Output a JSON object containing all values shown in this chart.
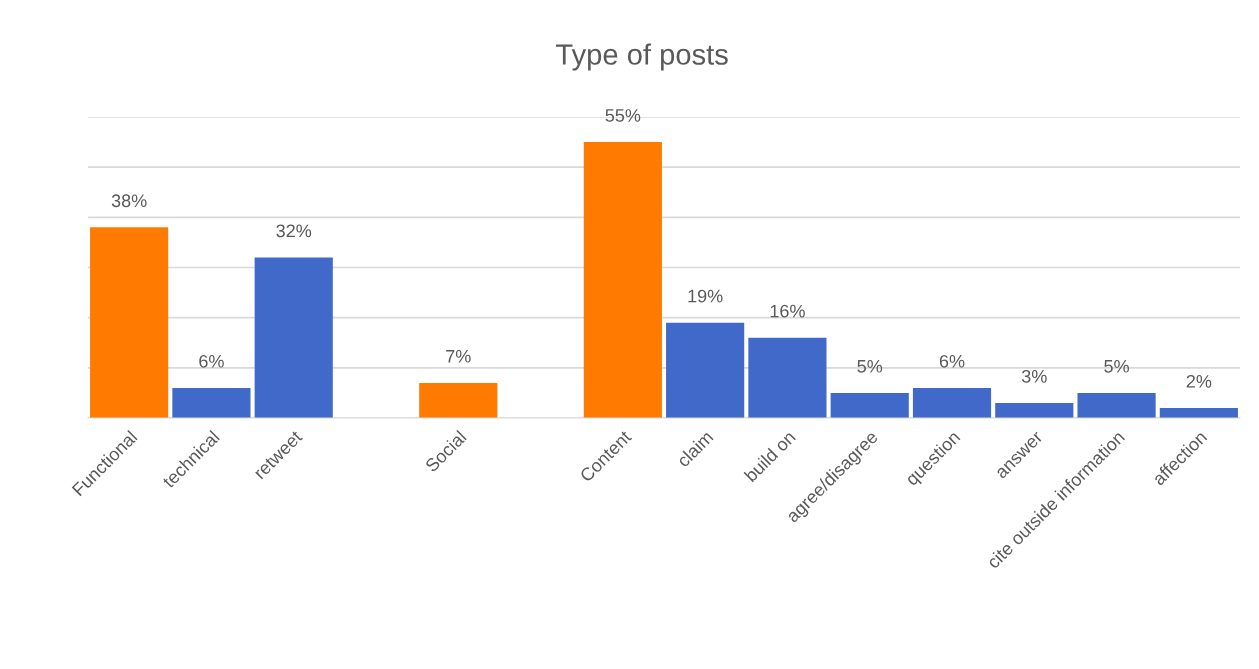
{
  "chart_data": {
    "type": "bar",
    "title": "Type of posts",
    "categories": [
      "Functional",
      "technical",
      "retweet",
      null,
      "Social",
      null,
      "Content",
      "claim",
      "build on",
      "agree/disagree",
      "question",
      "answer",
      "cite outside information",
      "affection"
    ],
    "values": [
      38,
      6,
      32,
      null,
      7,
      null,
      55,
      19,
      16,
      5,
      6,
      3,
      5,
      2
    ],
    "colors": [
      "#ff7a00",
      "#4169c9",
      "#4169c9",
      null,
      "#ff7a00",
      null,
      "#ff7a00",
      "#4169c9",
      "#4169c9",
      "#4169c9",
      "#4169c9",
      "#4169c9",
      "#4169c9",
      "#4169c9"
    ],
    "value_labels": [
      "38%",
      "6%",
      "32%",
      null,
      "7%",
      null,
      "55%",
      "19%",
      "16%",
      "5%",
      "6%",
      "3%",
      "5%",
      "2%"
    ],
    "ylim": [
      0,
      60
    ],
    "yticks": [
      {
        "value": 0,
        "label": null
      },
      {
        "value": 10,
        "label": null
      },
      {
        "value": 20,
        "label": null
      },
      {
        "value": 30,
        "label": null
      },
      {
        "value": 40,
        "label": null
      },
      {
        "value": 50,
        "label": null
      },
      {
        "value": 60,
        "label": null
      }
    ],
    "grid": "y",
    "tick_labels": "x"
  }
}
